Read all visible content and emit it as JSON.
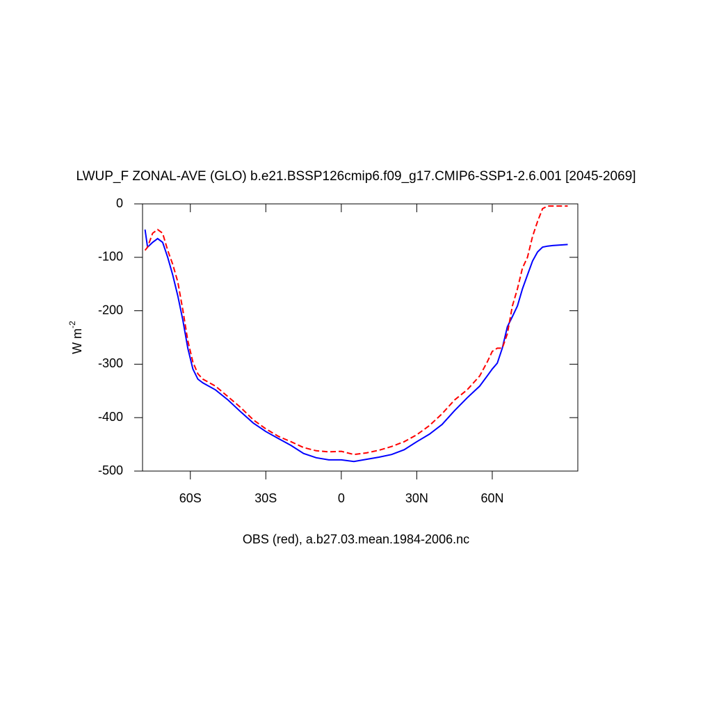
{
  "chart_data": {
    "type": "line",
    "title": "LWUP_F ZONAL-AVE (GLO) b.e21.BSSP126cmip6.f09_g17.CMIP6-SSP1-2.6.001 [2045-2069]",
    "xlabel": "OBS (red), a.b27.03.mean.1984-2006.nc",
    "ylabel": {
      "text": "W m",
      "superscript": "-2"
    },
    "x": [
      -78,
      -77,
      -75,
      -73,
      -71,
      -69,
      -67,
      -65,
      -63,
      -61,
      -59,
      -57,
      -55,
      -50,
      -45,
      -40,
      -35,
      -30,
      -25,
      -20,
      -15,
      -10,
      -5,
      0,
      5,
      10,
      15,
      20,
      25,
      30,
      35,
      40,
      45,
      50,
      55,
      58,
      60,
      62,
      64,
      66,
      68,
      70,
      72,
      74,
      76,
      78,
      80,
      82,
      84,
      90
    ],
    "series": [
      {
        "color": "#0000ff",
        "dashed": false,
        "values": [
          -48,
          -81,
          -72,
          -65,
          -72,
          -100,
          -133,
          -172,
          -217,
          -270,
          -309,
          -328,
          -335,
          -348,
          -367,
          -389,
          -410,
          -426,
          -439,
          -452,
          -467,
          -475,
          -479,
          -479,
          -482,
          -478,
          -474,
          -469,
          -460,
          -445,
          -431,
          -413,
          -387,
          -363,
          -341,
          -322,
          -309,
          -298,
          -270,
          -230,
          -211,
          -191,
          -159,
          -133,
          -107,
          -90,
          -81,
          -79,
          -78,
          -76
        ]
      },
      {
        "color": "#ff0000",
        "dashed": true,
        "values": [
          -87,
          -81,
          -55,
          -48,
          -55,
          -87,
          -113,
          -146,
          -198,
          -256,
          -296,
          -318,
          -328,
          -341,
          -361,
          -381,
          -404,
          -421,
          -435,
          -445,
          -456,
          -462,
          -464,
          -463,
          -469,
          -466,
          -461,
          -454,
          -445,
          -432,
          -415,
          -393,
          -367,
          -348,
          -322,
          -296,
          -276,
          -270,
          -270,
          -243,
          -191,
          -159,
          -120,
          -100,
          -61,
          -33,
          -9,
          -4,
          -4,
          -4
        ]
      }
    ],
    "xlim": [
      -79,
      94
    ],
    "xticks": [
      {
        "value": -60,
        "label": "60S"
      },
      {
        "value": -30,
        "label": "30S"
      },
      0,
      {
        "value": 30,
        "label": "30N"
      },
      {
        "value": 60,
        "label": "60N"
      }
    ],
    "ylim": [
      -500,
      0
    ],
    "yticks": [
      -500,
      -400,
      -300,
      -200,
      -100,
      0
    ]
  }
}
